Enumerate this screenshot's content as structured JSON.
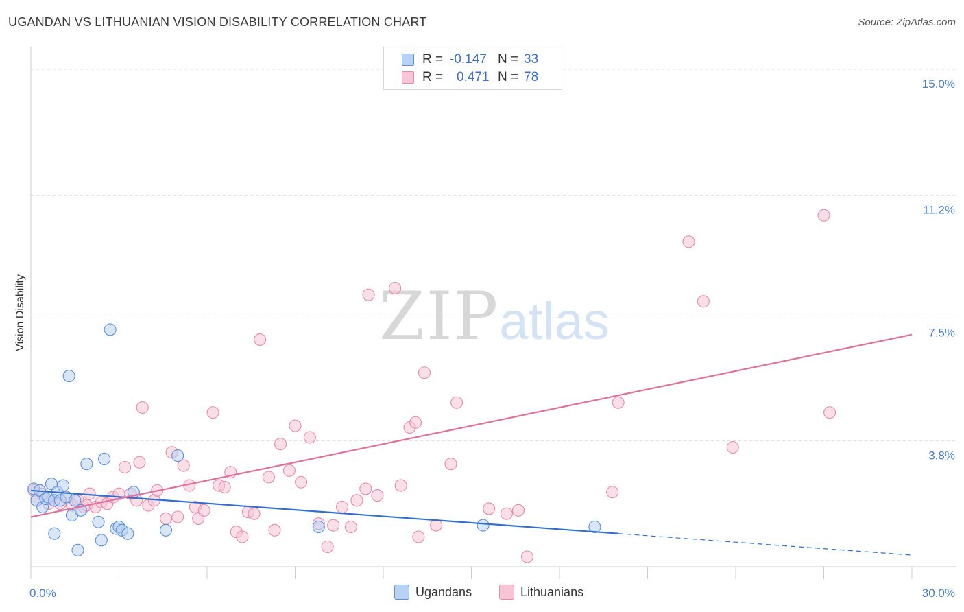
{
  "header": {
    "title": "UGANDAN VS LITHUANIAN VISION DISABILITY CORRELATION CHART",
    "source": "Source: ZipAtlas.com"
  },
  "watermark": {
    "zip": "ZIP",
    "atlas": "atlas"
  },
  "legend": {
    "r_label": "R =",
    "n_label": "N =",
    "rows": [
      {
        "r": "-0.147",
        "n": "33"
      },
      {
        "r": "0.471",
        "n": "78"
      }
    ]
  },
  "colors": {
    "ugandans_fill": "#b8d2f3",
    "ugandans_stroke": "#5b8fd8",
    "ugandans_line": "#2f6fd0",
    "lithuanians_fill": "#f7c5d5",
    "lithuanians_stroke": "#e88aaa",
    "lithuanians_line": "#e2709a",
    "tick_label": "#4a7ccc"
  },
  "chart_data": {
    "type": "scatter",
    "title": "UGANDAN VS LITHUANIAN VISION DISABILITY CORRELATION CHART",
    "xlabel": "",
    "ylabel": "Vision Disability",
    "xlim": [
      0,
      30
    ],
    "ylim": [
      0,
      15.6
    ],
    "x_tick_labels": [
      "0.0%",
      "30.0%"
    ],
    "y_ticks": [
      {
        "value": 3.8,
        "label": "3.8%"
      },
      {
        "value": 7.5,
        "label": "7.5%"
      },
      {
        "value": 11.2,
        "label": "11.2%"
      },
      {
        "value": 15.0,
        "label": "15.0%"
      }
    ],
    "grid": "horizontal dashed",
    "legend_position": "top-center",
    "series": [
      {
        "name": "Ugandans",
        "r": -0.147,
        "n": 33,
        "trend": {
          "x0": 0,
          "y0": 2.3,
          "x1": 20,
          "y1": 1.0,
          "dash_to_x": 30,
          "dash_to_y": 0.35
        },
        "points": [
          [
            0.1,
            2.35
          ],
          [
            0.2,
            2.0
          ],
          [
            0.3,
            2.3
          ],
          [
            0.4,
            1.8
          ],
          [
            0.5,
            2.05
          ],
          [
            0.6,
            2.1
          ],
          [
            0.7,
            2.5
          ],
          [
            0.8,
            2.0
          ],
          [
            0.9,
            2.25
          ],
          [
            1.0,
            2.0
          ],
          [
            1.1,
            2.45
          ],
          [
            1.2,
            2.1
          ],
          [
            1.3,
            5.75
          ],
          [
            1.4,
            1.55
          ],
          [
            1.5,
            2.0
          ],
          [
            1.6,
            0.5
          ],
          [
            1.7,
            1.7
          ],
          [
            1.9,
            3.1
          ],
          [
            2.3,
            1.35
          ],
          [
            2.4,
            0.8
          ],
          [
            2.5,
            3.25
          ],
          [
            2.7,
            7.15
          ],
          [
            2.9,
            1.15
          ],
          [
            3.0,
            1.2
          ],
          [
            3.1,
            1.1
          ],
          [
            3.3,
            1.0
          ],
          [
            3.5,
            2.25
          ],
          [
            4.6,
            1.1
          ],
          [
            5.0,
            3.35
          ],
          [
            0.8,
            1.0
          ],
          [
            9.8,
            1.2
          ],
          [
            15.4,
            1.25
          ],
          [
            19.2,
            1.2
          ]
        ]
      },
      {
        "name": "Lithuanians",
        "r": 0.471,
        "n": 78,
        "trend": {
          "x0": 0,
          "y0": 1.5,
          "x1": 30,
          "y1": 7.0
        },
        "points": [
          [
            0.1,
            2.3
          ],
          [
            0.2,
            2.0
          ],
          [
            0.4,
            2.2
          ],
          [
            0.6,
            1.9
          ],
          [
            0.8,
            2.0
          ],
          [
            1.0,
            1.9
          ],
          [
            1.2,
            2.1
          ],
          [
            1.4,
            1.85
          ],
          [
            1.6,
            2.0
          ],
          [
            1.8,
            1.8
          ],
          [
            1.9,
            1.85
          ],
          [
            2.0,
            2.2
          ],
          [
            2.2,
            1.8
          ],
          [
            2.4,
            1.95
          ],
          [
            2.6,
            1.9
          ],
          [
            2.8,
            2.1
          ],
          [
            3.0,
            2.2
          ],
          [
            3.2,
            3.0
          ],
          [
            3.4,
            2.2
          ],
          [
            3.6,
            2.0
          ],
          [
            3.7,
            3.15
          ],
          [
            3.8,
            4.8
          ],
          [
            4.0,
            1.85
          ],
          [
            4.2,
            2.0
          ],
          [
            4.3,
            2.3
          ],
          [
            4.6,
            1.45
          ],
          [
            4.8,
            3.45
          ],
          [
            5.0,
            1.5
          ],
          [
            5.2,
            3.05
          ],
          [
            5.4,
            2.45
          ],
          [
            5.6,
            1.8
          ],
          [
            5.7,
            1.45
          ],
          [
            5.9,
            1.7
          ],
          [
            6.2,
            4.65
          ],
          [
            6.4,
            2.45
          ],
          [
            6.6,
            2.4
          ],
          [
            6.8,
            2.85
          ],
          [
            7.0,
            1.05
          ],
          [
            7.2,
            0.9
          ],
          [
            7.4,
            1.65
          ],
          [
            7.6,
            1.6
          ],
          [
            7.8,
            6.85
          ],
          [
            8.1,
            2.7
          ],
          [
            8.3,
            1.1
          ],
          [
            8.5,
            3.7
          ],
          [
            8.8,
            2.9
          ],
          [
            9.0,
            4.25
          ],
          [
            9.2,
            2.55
          ],
          [
            9.5,
            3.9
          ],
          [
            9.8,
            1.3
          ],
          [
            10.1,
            0.6
          ],
          [
            10.3,
            1.25
          ],
          [
            10.6,
            1.8
          ],
          [
            10.9,
            1.2
          ],
          [
            11.1,
            2.0
          ],
          [
            11.4,
            2.35
          ],
          [
            11.5,
            8.2
          ],
          [
            11.8,
            2.15
          ],
          [
            12.4,
            8.4
          ],
          [
            12.6,
            2.45
          ],
          [
            12.9,
            4.2
          ],
          [
            13.1,
            4.35
          ],
          [
            13.2,
            0.9
          ],
          [
            13.4,
            5.85
          ],
          [
            13.8,
            1.25
          ],
          [
            14.3,
            3.1
          ],
          [
            14.5,
            4.95
          ],
          [
            15.6,
            1.75
          ],
          [
            16.2,
            1.6
          ],
          [
            16.6,
            1.7
          ],
          [
            16.9,
            0.3
          ],
          [
            19.8,
            2.25
          ],
          [
            20.0,
            4.95
          ],
          [
            22.4,
            9.8
          ],
          [
            22.9,
            8.0
          ],
          [
            23.9,
            3.6
          ],
          [
            27.0,
            10.6
          ],
          [
            27.2,
            4.65
          ]
        ]
      }
    ]
  }
}
